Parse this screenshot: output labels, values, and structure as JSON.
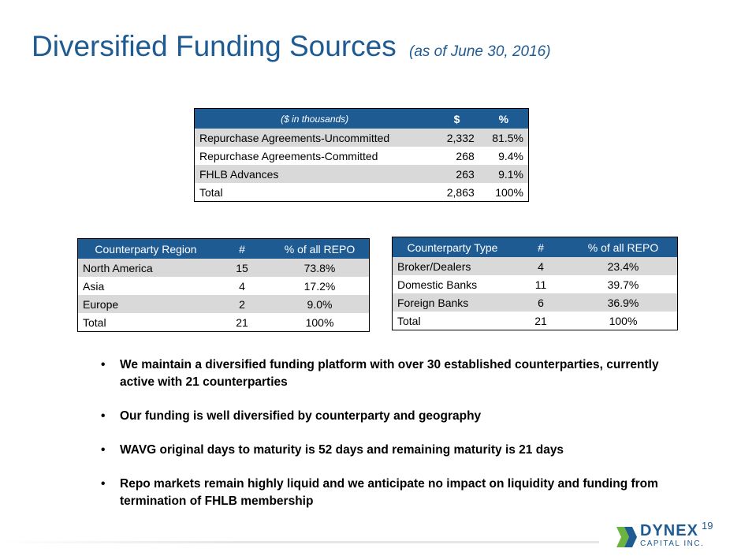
{
  "title": {
    "main": "Diversified Funding Sources",
    "sub": "(as of June 30, 2016)"
  },
  "funding_table": {
    "headers": [
      "($ in thousands)",
      "$",
      "%"
    ],
    "rows": [
      [
        "Repurchase Agreements-Uncommitted",
        "2,332",
        "81.5%"
      ],
      [
        "Repurchase Agreements-Committed",
        "268",
        "9.4%"
      ],
      [
        "FHLB Advances",
        "263",
        "9.1%"
      ],
      [
        "Total",
        "2,863",
        "100%"
      ]
    ]
  },
  "region_table": {
    "headers": [
      "Counterparty Region",
      "#",
      "% of all REPO"
    ],
    "rows": [
      [
        "North America",
        "15",
        "73.8%"
      ],
      [
        "Asia",
        "4",
        "17.2%"
      ],
      [
        "Europe",
        "2",
        "9.0%"
      ],
      [
        "Total",
        "21",
        "100%"
      ]
    ]
  },
  "type_table": {
    "headers": [
      "Counterparty Type",
      "#",
      "% of all REPO"
    ],
    "rows": [
      [
        "Broker/Dealers",
        "4",
        "23.4%"
      ],
      [
        "Domestic Banks",
        "11",
        "39.7%"
      ],
      [
        "Foreign Banks",
        "6",
        "36.9%"
      ],
      [
        "Total",
        "21",
        "100%"
      ]
    ]
  },
  "bullets": [
    "We maintain a diversified funding platform with over 30 established counterparties, currently active with 21 counterparties",
    "Our funding is well diversified by counterparty and geography",
    "WAVG original days to maturity is 52 days and remaining maturity is 21 days",
    "Repo markets remain highly liquid and we anticipate no impact on liquidity and funding from termination of FHLB membership"
  ],
  "bullet_glyph": "•",
  "page_number": "19",
  "logo": {
    "name": "DYNEX",
    "sub": "CAPITAL INC."
  },
  "colors": {
    "brand_blue": "#1f5b93",
    "shade_gray": "#d9d9d9",
    "logo_green": "#6db33f"
  }
}
